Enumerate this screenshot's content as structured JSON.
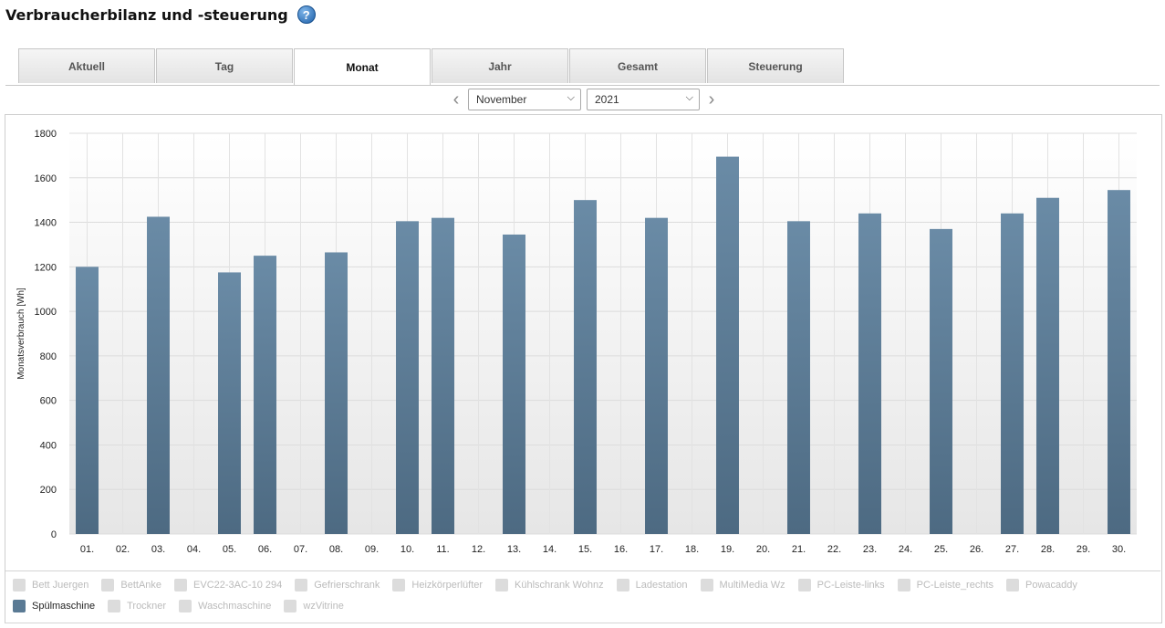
{
  "page": {
    "title": "Verbraucherbilanz und -steuerung"
  },
  "tabs": [
    {
      "label": "Aktuell",
      "active": false
    },
    {
      "label": "Tag",
      "active": false
    },
    {
      "label": "Monat",
      "active": true
    },
    {
      "label": "Jahr",
      "active": false
    },
    {
      "label": "Gesamt",
      "active": false
    },
    {
      "label": "Steuerung",
      "active": false
    }
  ],
  "period": {
    "month": "November",
    "year": "2021"
  },
  "chart_data": {
    "type": "bar",
    "ylabel": "Monatsverbrauch [Wh]",
    "ylim": [
      0,
      1800
    ],
    "yticks": [
      0,
      200,
      400,
      600,
      800,
      1000,
      1200,
      1400,
      1600,
      1800
    ],
    "grid": true,
    "bar_color": "#5a7a94",
    "categories": [
      "01.",
      "02.",
      "03.",
      "04.",
      "05.",
      "06.",
      "07.",
      "08.",
      "09.",
      "10.",
      "11.",
      "12.",
      "13.",
      "14.",
      "15.",
      "16.",
      "17.",
      "18.",
      "19.",
      "20.",
      "21.",
      "22.",
      "23.",
      "24.",
      "25.",
      "26.",
      "27.",
      "28.",
      "29.",
      "30."
    ],
    "series": [
      {
        "name": "Spülmaschine",
        "values": [
          1200,
          0,
          1425,
          0,
          1175,
          1250,
          0,
          1265,
          0,
          1405,
          1420,
          0,
          1345,
          0,
          1500,
          0,
          1420,
          0,
          1695,
          0,
          1405,
          0,
          1440,
          0,
          1370,
          0,
          1440,
          1510,
          0,
          1545
        ]
      }
    ]
  },
  "legend": [
    {
      "label": "Bett Juergen",
      "active": false
    },
    {
      "label": "BettAnke",
      "active": false
    },
    {
      "label": "EVC22-3AC-10 294",
      "active": false
    },
    {
      "label": "Gefrierschrank",
      "active": false
    },
    {
      "label": "Heizkörperlüfter",
      "active": false
    },
    {
      "label": "Kühlschrank Wohnz",
      "active": false
    },
    {
      "label": "Ladestation",
      "active": false
    },
    {
      "label": "MultiMedia Wz",
      "active": false
    },
    {
      "label": "PC-Leiste-links",
      "active": false
    },
    {
      "label": "PC-Leiste_rechts",
      "active": false
    },
    {
      "label": "Powacaddy",
      "active": false
    },
    {
      "label": "Spülmaschine",
      "active": true
    },
    {
      "label": "Trockner",
      "active": false
    },
    {
      "label": "Waschmaschine",
      "active": false
    },
    {
      "label": "wzVitrine",
      "active": false
    }
  ]
}
